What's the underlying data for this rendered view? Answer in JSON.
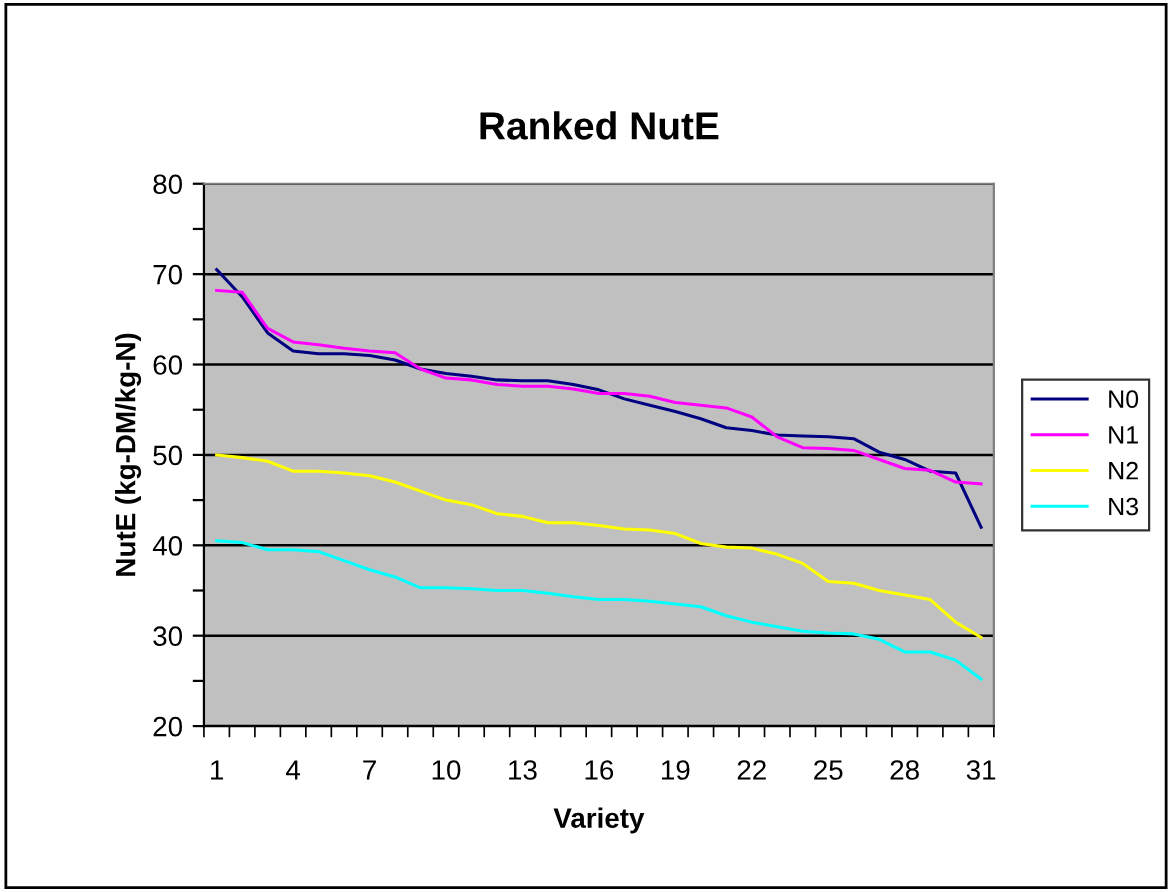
{
  "chart_data": {
    "type": "line",
    "title": "Ranked NutE",
    "xlabel": "Variety",
    "ylabel": "NutE (kg-DM/kg-N)",
    "categories": [
      "1",
      null,
      null,
      "4",
      null,
      null,
      "7",
      null,
      null,
      "10",
      null,
      null,
      "13",
      null,
      null,
      "16",
      null,
      null,
      "19",
      null,
      null,
      "22",
      null,
      null,
      "25",
      null,
      null,
      "28",
      null,
      null,
      "31"
    ],
    "series": [
      {
        "name": "N0",
        "color": "#000080",
        "values": [
          70.5,
          67.5,
          63.5,
          61.5,
          61.2,
          61.2,
          61,
          60.5,
          59.5,
          59,
          58.7,
          58.3,
          58.2,
          58.2,
          57.8,
          57.2,
          56.2,
          55.5,
          54.8,
          54,
          53,
          52.7,
          52.2,
          52.1,
          52,
          51.8,
          50.3,
          49.5,
          48.2,
          48,
          42
        ]
      },
      {
        "name": "N1",
        "color": "#ff00ff",
        "values": [
          68.2,
          68,
          64,
          62.5,
          62.2,
          61.8,
          61.5,
          61.3,
          59.5,
          58.5,
          58.3,
          57.8,
          57.6,
          57.6,
          57.3,
          56.8,
          56.8,
          56.5,
          55.8,
          55.5,
          55.2,
          54.2,
          52,
          50.8,
          50.7,
          50.5,
          49.5,
          48.5,
          48.3,
          47,
          46.8
        ]
      },
      {
        "name": "N2",
        "color": "#ffff00",
        "values": [
          50,
          49.7,
          49.3,
          48.2,
          48.2,
          48,
          47.7,
          47,
          46,
          45,
          44.5,
          43.5,
          43.2,
          42.5,
          42.5,
          42.2,
          41.8,
          41.7,
          41.3,
          40.2,
          39.8,
          39.7,
          39,
          38,
          36,
          35.8,
          35,
          34.5,
          34,
          31.5,
          29.8
        ]
      },
      {
        "name": "N3",
        "color": "#00ffff",
        "values": [
          40.5,
          40.3,
          39.5,
          39.5,
          39.3,
          38.3,
          37.3,
          36.5,
          35.3,
          35.3,
          35.2,
          35,
          35,
          34.7,
          34.3,
          34,
          34,
          33.8,
          33.5,
          33.2,
          32.2,
          31.5,
          31,
          30.5,
          30.3,
          30.2,
          29.6,
          28.2,
          28.2,
          27.3,
          25.2
        ]
      }
    ],
    "ylim": [
      20,
      80
    ],
    "yticks": [
      20,
      {
        "value": 25,
        "label": null
      },
      30,
      {
        "value": 35,
        "label": null
      },
      40,
      {
        "value": 45,
        "label": null
      },
      50,
      {
        "value": 55,
        "label": null
      },
      60,
      {
        "value": 65,
        "label": null
      },
      70,
      {
        "value": 75,
        "label": null
      },
      80
    ],
    "grid": "y",
    "legend": "right",
    "marker": "none",
    "line_style": "solid"
  }
}
